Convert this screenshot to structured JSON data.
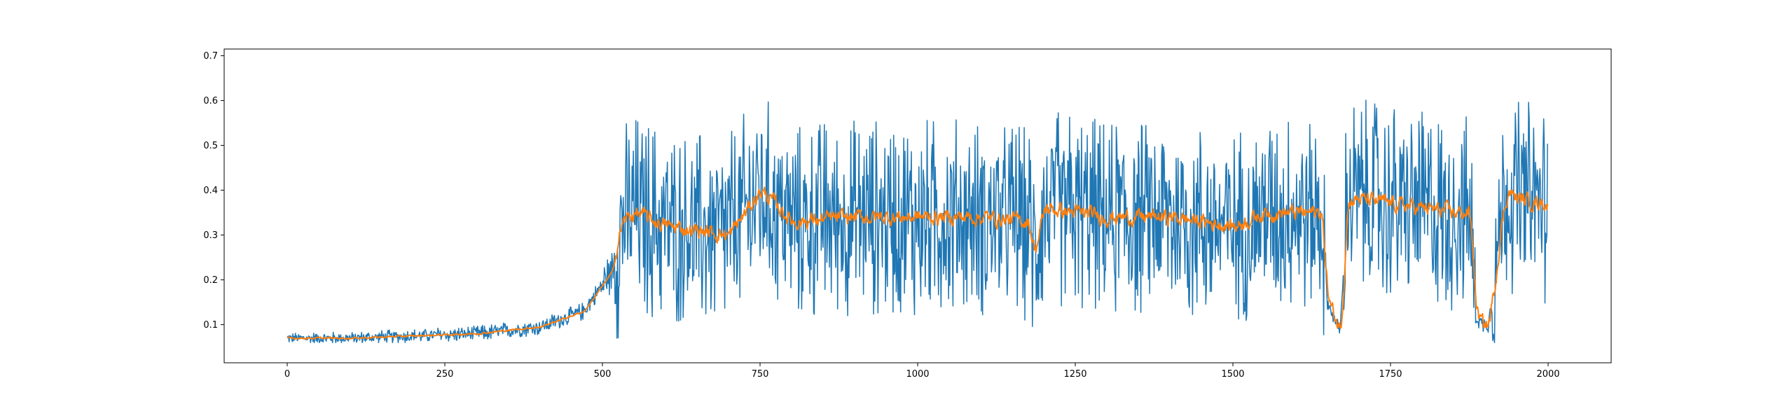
{
  "chart_data": {
    "type": "line",
    "title": "",
    "xlabel": "",
    "ylabel": "",
    "xlim": [
      -100,
      2100
    ],
    "ylim": [
      0.015,
      0.715
    ],
    "grid": false,
    "legend": "none",
    "x_ticks": [
      0,
      250,
      500,
      750,
      1000,
      1250,
      1500,
      1750,
      2000
    ],
    "x_tick_labels": [
      "0",
      "250",
      "500",
      "750",
      "1000",
      "1250",
      "1500",
      "1750",
      "2000"
    ],
    "y_ticks": [
      0.1,
      0.2,
      0.3,
      0.4,
      0.5,
      0.6,
      0.7
    ],
    "y_tick_labels": [
      "0.1",
      "0.2",
      "0.3",
      "0.4",
      "0.5",
      "0.6",
      "0.7"
    ],
    "n_points": 2000,
    "series": [
      {
        "color": "#1f77b4",
        "style": "raw",
        "anchor_x": [
          0,
          100,
          200,
          300,
          400,
          440,
          470,
          490,
          505,
          515,
          530,
          550,
          600,
          700,
          750,
          800,
          900,
          1000,
          1100,
          1175,
          1185,
          1200,
          1300,
          1400,
          1500,
          1550,
          1600,
          1640,
          1650,
          1665,
          1670,
          1675,
          1680,
          1700,
          1750,
          1800,
          1850,
          1875,
          1880,
          1885,
          1895,
          1905,
          1915,
          1925,
          1935,
          1950,
          2000
        ],
        "anchor_y": [
          0.07,
          0.07,
          0.075,
          0.08,
          0.095,
          0.115,
          0.13,
          0.17,
          0.2,
          0.22,
          0.33,
          0.35,
          0.32,
          0.3,
          0.4,
          0.33,
          0.34,
          0.34,
          0.34,
          0.33,
          0.26,
          0.36,
          0.34,
          0.34,
          0.32,
          0.35,
          0.35,
          0.35,
          0.15,
          0.1,
          0.09,
          0.2,
          0.38,
          0.38,
          0.37,
          0.36,
          0.35,
          0.35,
          0.25,
          0.12,
          0.1,
          0.1,
          0.2,
          0.33,
          0.4,
          0.38,
          0.37
        ],
        "range": [
          0.06,
          0.68
        ]
      },
      {
        "color": "#ff7f0e",
        "style": "rolling mean",
        "anchor_x": [
          0,
          100,
          200,
          300,
          400,
          440,
          470,
          490,
          505,
          515,
          530,
          550,
          600,
          700,
          750,
          800,
          900,
          1000,
          1100,
          1175,
          1185,
          1200,
          1300,
          1400,
          1500,
          1550,
          1600,
          1640,
          1650,
          1665,
          1670,
          1675,
          1680,
          1700,
          1750,
          1800,
          1850,
          1875,
          1880,
          1885,
          1895,
          1905,
          1915,
          1925,
          1935,
          1950,
          2000
        ],
        "anchor_y": [
          0.07,
          0.07,
          0.075,
          0.08,
          0.095,
          0.115,
          0.13,
          0.17,
          0.2,
          0.22,
          0.33,
          0.35,
          0.32,
          0.3,
          0.4,
          0.33,
          0.34,
          0.34,
          0.34,
          0.33,
          0.26,
          0.36,
          0.34,
          0.34,
          0.32,
          0.35,
          0.35,
          0.35,
          0.15,
          0.1,
          0.09,
          0.2,
          0.38,
          0.38,
          0.37,
          0.36,
          0.35,
          0.35,
          0.25,
          0.12,
          0.1,
          0.1,
          0.2,
          0.33,
          0.4,
          0.38,
          0.37
        ]
      }
    ]
  }
}
